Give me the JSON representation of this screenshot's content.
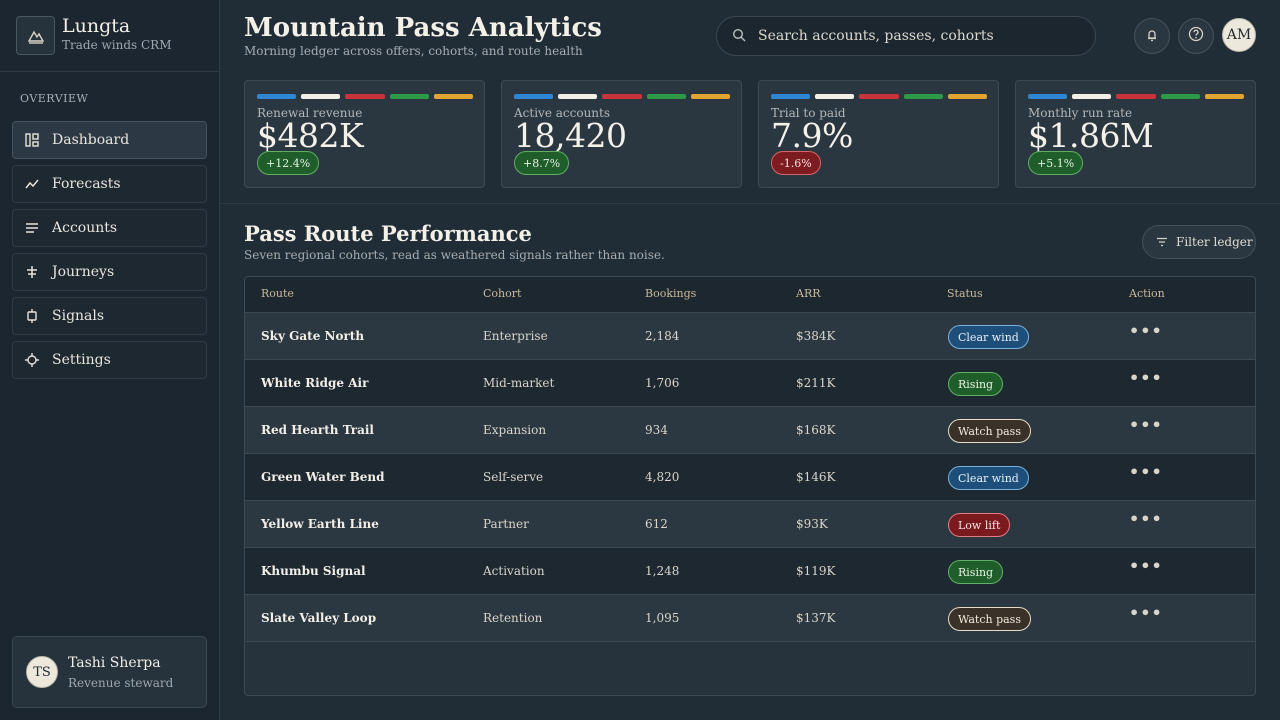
{
  "brand": {
    "name": "Lungta",
    "subtitle": "Trade winds CRM"
  },
  "sidebar": {
    "section_label": "OVERVIEW",
    "items": [
      {
        "label": "Dashboard",
        "icon": "dashboard-icon",
        "active": true
      },
      {
        "label": "Forecasts",
        "icon": "trend-line-icon",
        "active": false
      },
      {
        "label": "Accounts",
        "icon": "list-icon",
        "active": false
      },
      {
        "label": "Journeys",
        "icon": "route-icon",
        "active": false
      },
      {
        "label": "Signals",
        "icon": "signal-icon",
        "active": false
      },
      {
        "label": "Settings",
        "icon": "gear-icon",
        "active": false
      }
    ],
    "user": {
      "initials": "TS",
      "name": "Tashi Sherpa",
      "role": "Revenue steward"
    }
  },
  "header": {
    "title": "Mountain Pass Analytics",
    "subtitle": "Morning ledger across offers, cohorts, and route health",
    "search_placeholder": "Search accounts, passes, cohorts",
    "avatar_initials": "AM"
  },
  "prayer_flag_colors": [
    "#2f86d4",
    "#f1efe8",
    "#c9343b",
    "#2c9a46",
    "#e3a532"
  ],
  "kpis": [
    {
      "label": "Renewal revenue",
      "value": "$482K",
      "delta": "+12.4%",
      "trend": "up"
    },
    {
      "label": "Active accounts",
      "value": "18,420",
      "delta": "+8.7%",
      "trend": "up"
    },
    {
      "label": "Trial to paid",
      "value": "7.9%",
      "delta": "-1.6%",
      "trend": "down"
    },
    {
      "label": "Monthly run rate",
      "value": "$1.86M",
      "delta": "+5.1%",
      "trend": "up"
    }
  ],
  "section": {
    "title": "Pass Route Performance",
    "subtitle": "Seven regional cohorts, read as weathered signals rather than noise.",
    "filter_label": "Filter ledger"
  },
  "table": {
    "columns": [
      "Route",
      "Cohort",
      "Bookings",
      "ARR",
      "Status",
      "Action"
    ],
    "rows": [
      {
        "route": "Sky Gate North",
        "cohort": "Enterprise",
        "bookings": "2,184",
        "arr": "$384K",
        "status": "Clear wind",
        "status_kind": "clear"
      },
      {
        "route": "White Ridge Air",
        "cohort": "Mid-market",
        "bookings": "1,706",
        "arr": "$211K",
        "status": "Rising",
        "status_kind": "rising"
      },
      {
        "route": "Red Hearth Trail",
        "cohort": "Expansion",
        "bookings": "934",
        "arr": "$168K",
        "status": "Watch pass",
        "status_kind": "watch"
      },
      {
        "route": "Green Water Bend",
        "cohort": "Self-serve",
        "bookings": "4,820",
        "arr": "$146K",
        "status": "Clear wind",
        "status_kind": "clear"
      },
      {
        "route": "Yellow Earth Line",
        "cohort": "Partner",
        "bookings": "612",
        "arr": "$93K",
        "status": "Low lift",
        "status_kind": "low"
      },
      {
        "route": "Khumbu Signal",
        "cohort": "Activation",
        "bookings": "1,248",
        "arr": "$119K",
        "status": "Rising",
        "status_kind": "rising"
      },
      {
        "route": "Slate Valley Loop",
        "cohort": "Retention",
        "bookings": "1,095",
        "arr": "$137K",
        "status": "Watch pass",
        "status_kind": "watch"
      }
    ],
    "action_glyph": "•••"
  }
}
